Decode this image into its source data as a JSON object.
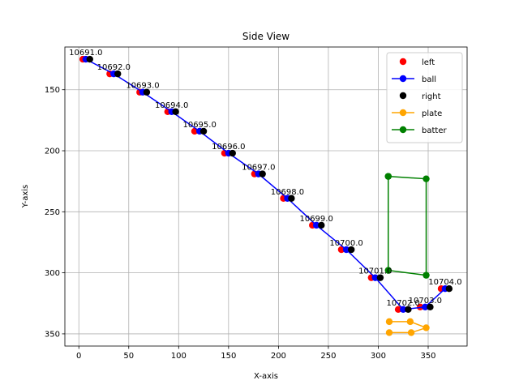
{
  "chart_data": {
    "type": "scatter",
    "title": "Side View",
    "xlabel": "X-axis",
    "ylabel": "Y-axis",
    "xlim": [
      -14,
      389
    ],
    "ylim": [
      360,
      115
    ],
    "y_inverted": true,
    "x_ticks": [
      0,
      50,
      100,
      150,
      200,
      250,
      300,
      350
    ],
    "y_ticks": [
      150,
      200,
      250,
      300,
      350
    ],
    "grid": true,
    "legend_position": "top-right",
    "series": [
      {
        "name": "left",
        "style": "scatter",
        "color": "#ff0000",
        "points": [
          [
            4,
            125
          ],
          [
            31,
            137
          ],
          [
            61,
            152
          ],
          [
            89,
            168
          ],
          [
            116,
            184
          ],
          [
            146,
            202
          ],
          [
            176,
            219
          ],
          [
            205,
            239
          ],
          [
            234,
            261
          ],
          [
            263,
            281
          ],
          [
            293,
            304
          ],
          [
            320,
            330
          ],
          [
            342,
            328
          ],
          [
            363,
            313
          ]
        ]
      },
      {
        "name": "ball",
        "style": "line-marker",
        "color": "#0000ff",
        "points": [
          [
            7,
            125
          ],
          [
            35,
            137
          ],
          [
            64,
            152
          ],
          [
            93,
            168
          ],
          [
            121,
            184
          ],
          [
            150,
            202
          ],
          [
            180,
            219
          ],
          [
            209,
            239
          ],
          [
            238,
            261
          ],
          [
            268,
            281
          ],
          [
            297,
            304
          ],
          [
            325,
            330
          ],
          [
            347,
            328
          ],
          [
            367,
            313
          ]
        ]
      },
      {
        "name": "right",
        "style": "scatter",
        "color": "#000000",
        "points": [
          [
            11,
            125
          ],
          [
            39,
            137
          ],
          [
            68,
            152
          ],
          [
            97,
            168
          ],
          [
            125,
            184
          ],
          [
            154,
            202
          ],
          [
            184,
            219
          ],
          [
            213,
            239
          ],
          [
            243,
            261
          ],
          [
            273,
            281
          ],
          [
            302,
            304
          ],
          [
            330,
            330
          ],
          [
            352,
            328
          ],
          [
            371,
            313
          ]
        ]
      },
      {
        "name": "plate",
        "style": "line-marker",
        "color": "#ffa500",
        "points": [
          [
            311,
            340
          ],
          [
            332,
            340
          ],
          [
            348,
            345
          ],
          [
            333,
            349
          ],
          [
            311,
            349
          ]
        ]
      },
      {
        "name": "batter",
        "style": "line-marker",
        "color": "#008000",
        "points": [
          [
            310,
            221
          ],
          [
            348,
            223
          ],
          [
            348,
            302
          ],
          [
            310,
            298
          ],
          [
            310,
            221
          ]
        ]
      }
    ],
    "frame_labels": [
      {
        "text": "10691.0",
        "x": 7,
        "y": 125
      },
      {
        "text": "10692.0",
        "x": 35,
        "y": 137
      },
      {
        "text": "10693.0",
        "x": 64,
        "y": 152
      },
      {
        "text": "10694.0",
        "x": 93,
        "y": 168
      },
      {
        "text": "10695.0",
        "x": 121,
        "y": 184
      },
      {
        "text": "10696.0",
        "x": 150,
        "y": 202
      },
      {
        "text": "10697.0",
        "x": 180,
        "y": 219
      },
      {
        "text": "10698.0",
        "x": 209,
        "y": 239
      },
      {
        "text": "10699.0",
        "x": 238,
        "y": 261
      },
      {
        "text": "10700.0",
        "x": 268,
        "y": 281
      },
      {
        "text": "10701.0",
        "x": 297,
        "y": 304
      },
      {
        "text": "10702.0",
        "x": 325,
        "y": 330
      },
      {
        "text": "10703.0",
        "x": 347,
        "y": 328
      },
      {
        "text": "10704.0",
        "x": 367,
        "y": 313
      }
    ]
  }
}
